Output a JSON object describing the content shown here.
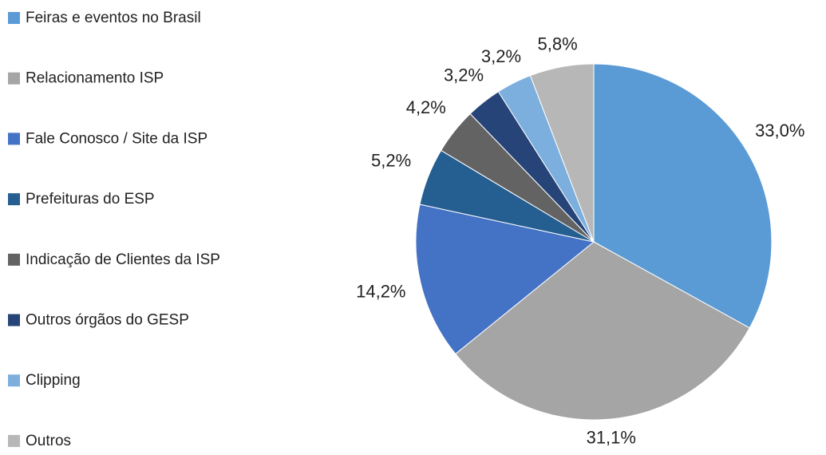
{
  "chart_data": {
    "type": "pie",
    "categories": [
      "Feiras e eventos no Brasil",
      "Relacionamento ISP",
      "Fale Conosco / Site da ISP",
      "Prefeituras do ESP",
      "Indicação de Clientes da ISP",
      "Outros órgãos do GESP",
      "Clipping",
      "Outros"
    ],
    "values": [
      33.0,
      31.1,
      14.2,
      5.2,
      4.2,
      3.2,
      3.2,
      5.8
    ],
    "value_labels": [
      "33,0%",
      "31,1%",
      "14,2%",
      "5,2%",
      "4,2%",
      "3,2%",
      "3,2%",
      "5,8%"
    ],
    "colors": [
      "#5b9bd5",
      "#a5a5a5",
      "#4472c4",
      "#255e91",
      "#636363",
      "#264478",
      "#7cafdd",
      "#b7b7b7"
    ],
    "legend": "left"
  }
}
